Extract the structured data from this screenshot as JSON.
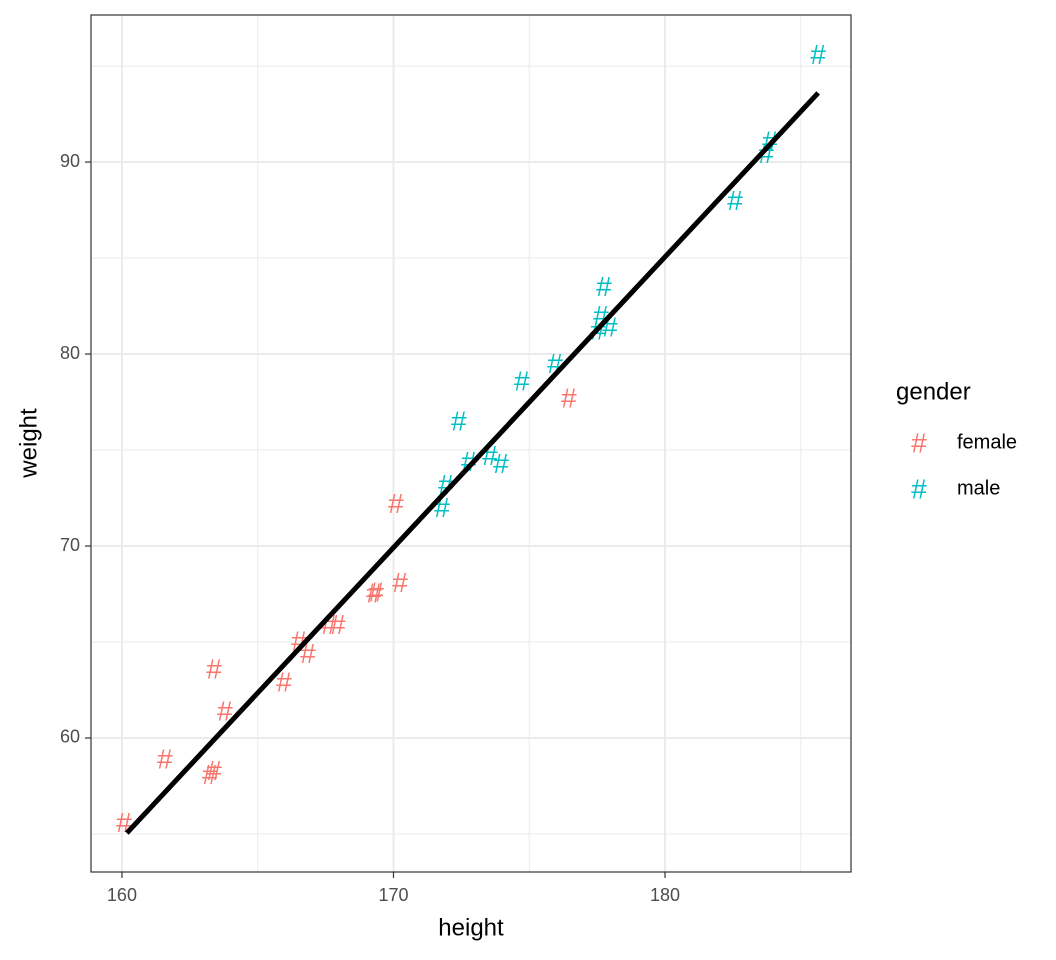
{
  "chart_data": {
    "type": "scatter",
    "x_label": "height",
    "y_label": "weight",
    "marker": "#",
    "xlim": [
      158.86,
      186.85
    ],
    "ylim": [
      53.02,
      97.66
    ],
    "xticks": [
      160,
      170,
      180
    ],
    "yticks": [
      60,
      70,
      80,
      90
    ],
    "x_minor_grid": [
      165,
      175,
      185
    ],
    "y_minor_grid": [
      55,
      65,
      75,
      85,
      95
    ],
    "grid": true,
    "legend_title": "gender",
    "legend_position": "right",
    "series": [
      {
        "name": "female",
        "color": "#F8766D",
        "x": [
          160.07,
          161.58,
          163.24,
          163.39,
          163.39,
          163.79,
          165.97,
          166.52,
          166.85,
          167.62,
          167.95,
          169.28,
          169.36,
          170.24,
          170.09,
          176.46
        ],
        "values": [
          55.6,
          58.9,
          58.1,
          58.3,
          63.6,
          61.4,
          62.9,
          65.05,
          64.4,
          65.9,
          65.9,
          67.55,
          67.6,
          68.1,
          72.2,
          77.7
        ]
      },
      {
        "name": "male",
        "color": "#00BFC4",
        "x": [
          171.79,
          171.93,
          172.41,
          172.78,
          173.55,
          173.96,
          174.73,
          175.95,
          177.53,
          177.64,
          177.75,
          177.97,
          182.58,
          183.72,
          183.87,
          185.64
        ],
        "values": [
          72.0,
          73.2,
          76.5,
          74.4,
          74.7,
          74.3,
          78.6,
          79.5,
          81.25,
          82.0,
          83.5,
          81.4,
          88.0,
          90.45,
          91.1,
          95.6
        ]
      }
    ],
    "fit_line": {
      "color": "#000000",
      "x": [
        160.18,
        185.64
      ],
      "values": [
        55.05,
        93.6
      ]
    }
  }
}
